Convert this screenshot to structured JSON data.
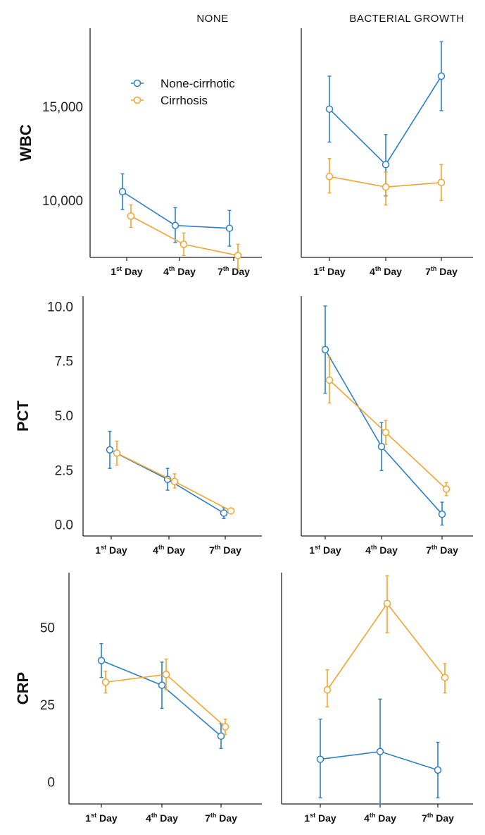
{
  "colors": {
    "non_cirrhotic": "#2e7fc6",
    "cirrhosis": "#f0a531",
    "axis": "#222222"
  },
  "columns": [
    "NONE",
    "BACTERIAL GROWTH"
  ],
  "legend": {
    "entries": [
      "None-cirrhotic",
      "Cirrhosis"
    ],
    "placement": "top-left of first panel"
  },
  "x_categories": [
    {
      "num": "1",
      "sup": "st",
      "word": " Day"
    },
    {
      "num": "4",
      "sup": "th",
      "word": " Day"
    },
    {
      "num": "7",
      "sup": "th",
      "word": " Day"
    }
  ],
  "chart_data": [
    {
      "type": "line",
      "row": "WBC",
      "column": "NONE",
      "ylabel": "WBC",
      "ylim": [
        7000,
        19200
      ],
      "yticks": [
        10000,
        15000
      ],
      "ytick_labels": [
        "10,000",
        "15,000"
      ],
      "categories": [
        "1st Day",
        "4th Day",
        "7th Day"
      ],
      "series": [
        {
          "name": "None-cirrhotic",
          "values": [
            10500,
            8700,
            8550
          ],
          "err_low": [
            9550,
            7800,
            7600
          ],
          "err_high": [
            11450,
            9650,
            9500
          ]
        },
        {
          "name": "Cirrhosis",
          "values": [
            9200,
            7700,
            7100
          ],
          "err_low": [
            8600,
            7100,
            6400
          ],
          "err_high": [
            9800,
            8300,
            7700
          ]
        }
      ]
    },
    {
      "type": "line",
      "row": "WBC",
      "column": "BACTERIAL GROWTH",
      "ylim": [
        4000,
        19300
      ],
      "categories": [
        "1st Day",
        "4th Day",
        "7th Day"
      ],
      "series": [
        {
          "name": "None-cirrhotic",
          "values": [
            13900,
            10200,
            16100
          ],
          "err_low": [
            11700,
            8100,
            13800
          ],
          "err_high": [
            16100,
            12200,
            18400
          ]
        },
        {
          "name": "Cirrhosis",
          "values": [
            9400,
            8700,
            9000
          ],
          "err_low": [
            8300,
            7500,
            7800
          ],
          "err_high": [
            10600,
            9700,
            10200
          ]
        }
      ]
    },
    {
      "type": "line",
      "row": "PCT",
      "column": "NONE",
      "ylabel": "PCT",
      "ylim": [
        -0.5,
        10.5
      ],
      "yticks": [
        0,
        2.5,
        5,
        7.5,
        10
      ],
      "ytick_labels": [
        "0.0",
        "2.5",
        "5.0",
        "7.5",
        "10.0"
      ],
      "categories": [
        "1st Day",
        "4th Day",
        "7th Day"
      ],
      "series": [
        {
          "name": "None-cirrhotic",
          "values": [
            3.45,
            2.1,
            0.55
          ],
          "err_low": [
            2.6,
            1.6,
            0.3
          ],
          "err_high": [
            4.3,
            2.6,
            0.8
          ]
        },
        {
          "name": "Cirrhosis",
          "values": [
            3.3,
            2.0,
            0.65
          ],
          "err_low": [
            2.75,
            1.7,
            0.55
          ],
          "err_high": [
            3.85,
            2.35,
            0.75
          ]
        }
      ]
    },
    {
      "type": "line",
      "row": "PCT",
      "column": "BACTERIAL GROWTH",
      "ylim": [
        -0.5,
        10.5
      ],
      "categories": [
        "1st Day",
        "4th Day",
        "7th Day"
      ],
      "series": [
        {
          "name": "None-cirrhotic",
          "values": [
            8.05,
            3.6,
            0.5
          ],
          "err_low": [
            6.05,
            2.5,
            0.0
          ],
          "err_high": [
            10.05,
            4.7,
            1.05
          ]
        },
        {
          "name": "Cirrhosis",
          "values": [
            6.65,
            4.25,
            1.65
          ],
          "err_low": [
            5.6,
            3.7,
            1.35
          ],
          "err_high": [
            7.7,
            4.8,
            1.95
          ]
        }
      ]
    },
    {
      "type": "line",
      "row": "CRP",
      "column": "NONE",
      "ylabel": "CRP",
      "ylim": [
        -7,
        68
      ],
      "yticks": [
        0,
        25,
        50
      ],
      "ytick_labels": [
        "0",
        "25",
        "50"
      ],
      "categories": [
        "1st Day",
        "4th Day",
        "7th Day"
      ],
      "series": [
        {
          "name": "None-cirrhotic",
          "values": [
            39.5,
            31.5,
            15.0
          ],
          "err_low": [
            34.0,
            24.0,
            11.0
          ],
          "err_high": [
            45.0,
            39.0,
            19.0
          ]
        },
        {
          "name": "Cirrhosis",
          "values": [
            32.5,
            35.0,
            18.0
          ],
          "err_low": [
            29.0,
            30.0,
            15.5
          ],
          "err_high": [
            36.0,
            40.0,
            20.5
          ]
        }
      ]
    },
    {
      "type": "line",
      "row": "CRP",
      "column": "BACTERIAL GROWTH",
      "ylim": [
        -7,
        68
      ],
      "categories": [
        "1st Day",
        "4th Day",
        "7th Day"
      ],
      "series": [
        {
          "name": "None-cirrhotic",
          "values": [
            7.5,
            10.0,
            4.0
          ],
          "err_low": [
            -5.0,
            -7.0,
            -5.0
          ],
          "err_high": [
            20.5,
            27.0,
            13.0
          ]
        },
        {
          "name": "Cirrhosis",
          "values": [
            30.0,
            58.0,
            34.0
          ],
          "err_low": [
            24.5,
            48.5,
            29.0
          ],
          "err_high": [
            36.5,
            67.0,
            38.5
          ]
        }
      ]
    }
  ]
}
